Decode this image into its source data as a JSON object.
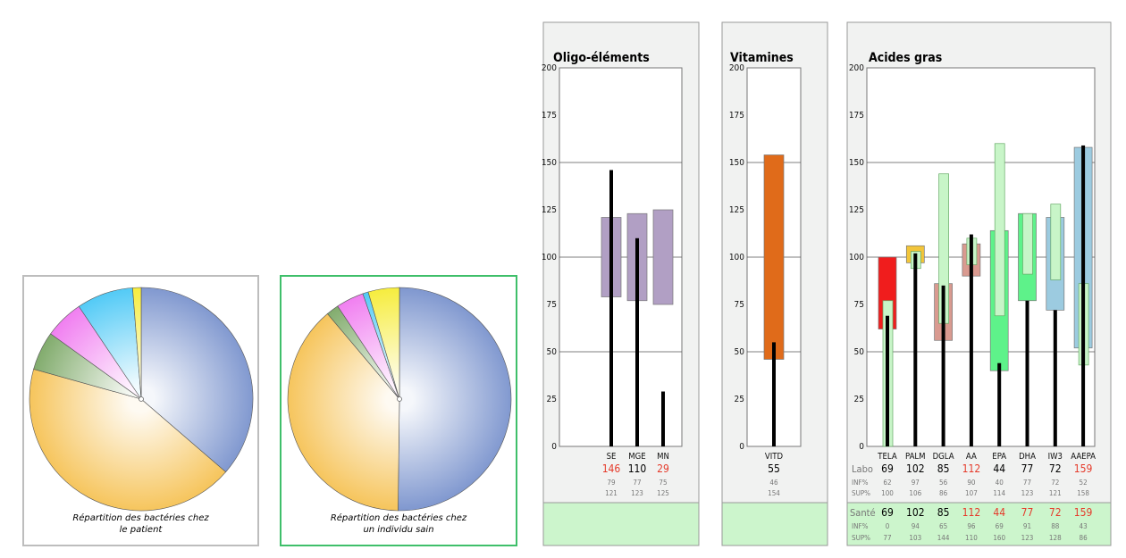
{
  "pies": [
    {
      "caption_line1": "Répartition des bactéries chez",
      "caption_line2": "le patient",
      "chart_type": "pie"
    },
    {
      "caption_line1": "Répartition des bactéries chez",
      "caption_line2": "un individu sain",
      "chart_type": "pie"
    }
  ],
  "chart_data": [
    {
      "type": "pie",
      "caption": "Répartition des bactéries chez le patient",
      "slices": [
        {
          "value": 35.5,
          "color": "#7f97cf"
        },
        {
          "value": 42.0,
          "color": "#f6c45a"
        },
        {
          "value": 5.5,
          "color": "#7faa6a"
        },
        {
          "value": 5.5,
          "color": "#f07cf0"
        },
        {
          "value": 8.0,
          "color": "#4fc9f6"
        },
        {
          "value": 1.2,
          "color": "#f6ec3a"
        }
      ]
    },
    {
      "type": "pie",
      "caption": "Répartition des bactéries chez un individu sain",
      "slices": [
        {
          "value": 50.0,
          "color": "#7f97cf"
        },
        {
          "value": 38.5,
          "color": "#f6c45a"
        },
        {
          "value": 1.8,
          "color": "#7faa6a"
        },
        {
          "value": 4.0,
          "color": "#f07cf0"
        },
        {
          "value": 0.8,
          "color": "#4fc9f6"
        },
        {
          "value": 4.5,
          "color": "#f6ec3a"
        }
      ]
    },
    {
      "type": "bar",
      "title": "Oligo-éléments",
      "ylim": [
        0,
        200
      ],
      "yticks": [
        0,
        25,
        50,
        75,
        100,
        125,
        150,
        175,
        200
      ],
      "categories": [
        "SE",
        "MGE",
        "MN"
      ],
      "range_boxes": [
        {
          "low": 79,
          "high": 121,
          "color": "#b19fc4"
        },
        {
          "low": 77,
          "high": 123,
          "color": "#b19fc4"
        },
        {
          "low": 75,
          "high": 125,
          "color": "#b19fc4"
        }
      ],
      "labo_values": [
        146,
        110,
        29
      ],
      "labo_colors": [
        "#e53a2a",
        "#000000",
        "#e53a2a"
      ],
      "inf": [
        79,
        77,
        75
      ],
      "sup": [
        121,
        123,
        125
      ]
    },
    {
      "type": "bar",
      "title": "Vitamines",
      "ylim": [
        0,
        200
      ],
      "yticks": [
        0,
        25,
        50,
        75,
        100,
        125,
        150,
        175,
        200
      ],
      "categories": [
        "VITD"
      ],
      "range_boxes": [
        {
          "low": 46,
          "high": 154,
          "color": "#e06b1a"
        }
      ],
      "labo_values": [
        55
      ],
      "labo_colors": [
        "#000000"
      ],
      "inf": [
        46
      ],
      "sup": [
        154
      ]
    },
    {
      "type": "bar",
      "title": "Acides gras",
      "ylim": [
        0,
        200
      ],
      "yticks": [
        0,
        25,
        50,
        75,
        100,
        125,
        150,
        175,
        200
      ],
      "categories": [
        "TELA",
        "PALM",
        "DGLA",
        "AA",
        "EPA",
        "DHA",
        "IW3",
        "AAEPA"
      ],
      "labo_range_boxes": [
        {
          "low": 62,
          "high": 100,
          "color": "#f01d1d"
        },
        {
          "low": 97,
          "high": 106,
          "color": "#f2c53a"
        },
        {
          "low": 56,
          "high": 86,
          "color": "#d99a90"
        },
        {
          "low": 90,
          "high": 107,
          "color": "#d99a90"
        },
        {
          "low": 40,
          "high": 114,
          "color": "#5ef28a"
        },
        {
          "low": 77,
          "high": 123,
          "color": "#5ef28a"
        },
        {
          "low": 72,
          "high": 121,
          "color": "#9ccbe0"
        },
        {
          "low": 52,
          "high": 158,
          "color": "#9ccbe0"
        }
      ],
      "sante_range_boxes": [
        {
          "low": 0,
          "high": 77,
          "color": "#c8f5c8"
        },
        {
          "low": 94,
          "high": 103,
          "color": "#c8f5c8"
        },
        {
          "low": 65,
          "high": 144,
          "color": "#c8f5c8"
        },
        {
          "low": 96,
          "high": 110,
          "color": "#c8f5c8"
        },
        {
          "low": 69,
          "high": 160,
          "color": "#c8f5c8"
        },
        {
          "low": 91,
          "high": 123,
          "color": "#c8f5c8"
        },
        {
          "low": 88,
          "high": 128,
          "color": "#c8f5c8"
        },
        {
          "low": 43,
          "high": 86,
          "color": "#c8f5c8"
        }
      ],
      "labo_values": [
        69,
        102,
        85,
        112,
        44,
        77,
        72,
        159
      ],
      "labo_colors": [
        "#000000",
        "#000000",
        "#000000",
        "#e53a2a",
        "#000000",
        "#000000",
        "#000000",
        "#e53a2a"
      ],
      "labo_inf": [
        62,
        97,
        56,
        90,
        40,
        77,
        72,
        52
      ],
      "labo_sup": [
        100,
        106,
        86,
        107,
        114,
        123,
        121,
        158
      ],
      "sante_values": [
        69,
        102,
        85,
        112,
        44,
        77,
        72,
        159
      ],
      "sante_colors": [
        "#000000",
        "#000000",
        "#000000",
        "#e53a2a",
        "#e53a2a",
        "#e53a2a",
        "#e53a2a",
        "#e53a2a"
      ],
      "sante_inf": [
        0,
        94,
        65,
        96,
        69,
        91,
        88,
        43
      ],
      "sante_sup": [
        77,
        103,
        144,
        110,
        160,
        123,
        128,
        86
      ]
    }
  ],
  "row_labels": {
    "labo": "Labo",
    "inf": "INF%",
    "sup": "SUP%",
    "sante": "Santé"
  },
  "colors": {
    "panel_bg": "#f1f2f1",
    "panel_border": "#999999",
    "footer_green": "#ccf5cc",
    "sante_green": "#2fa12f",
    "alert_red": "#e53a2a",
    "gridline": "#555555"
  }
}
